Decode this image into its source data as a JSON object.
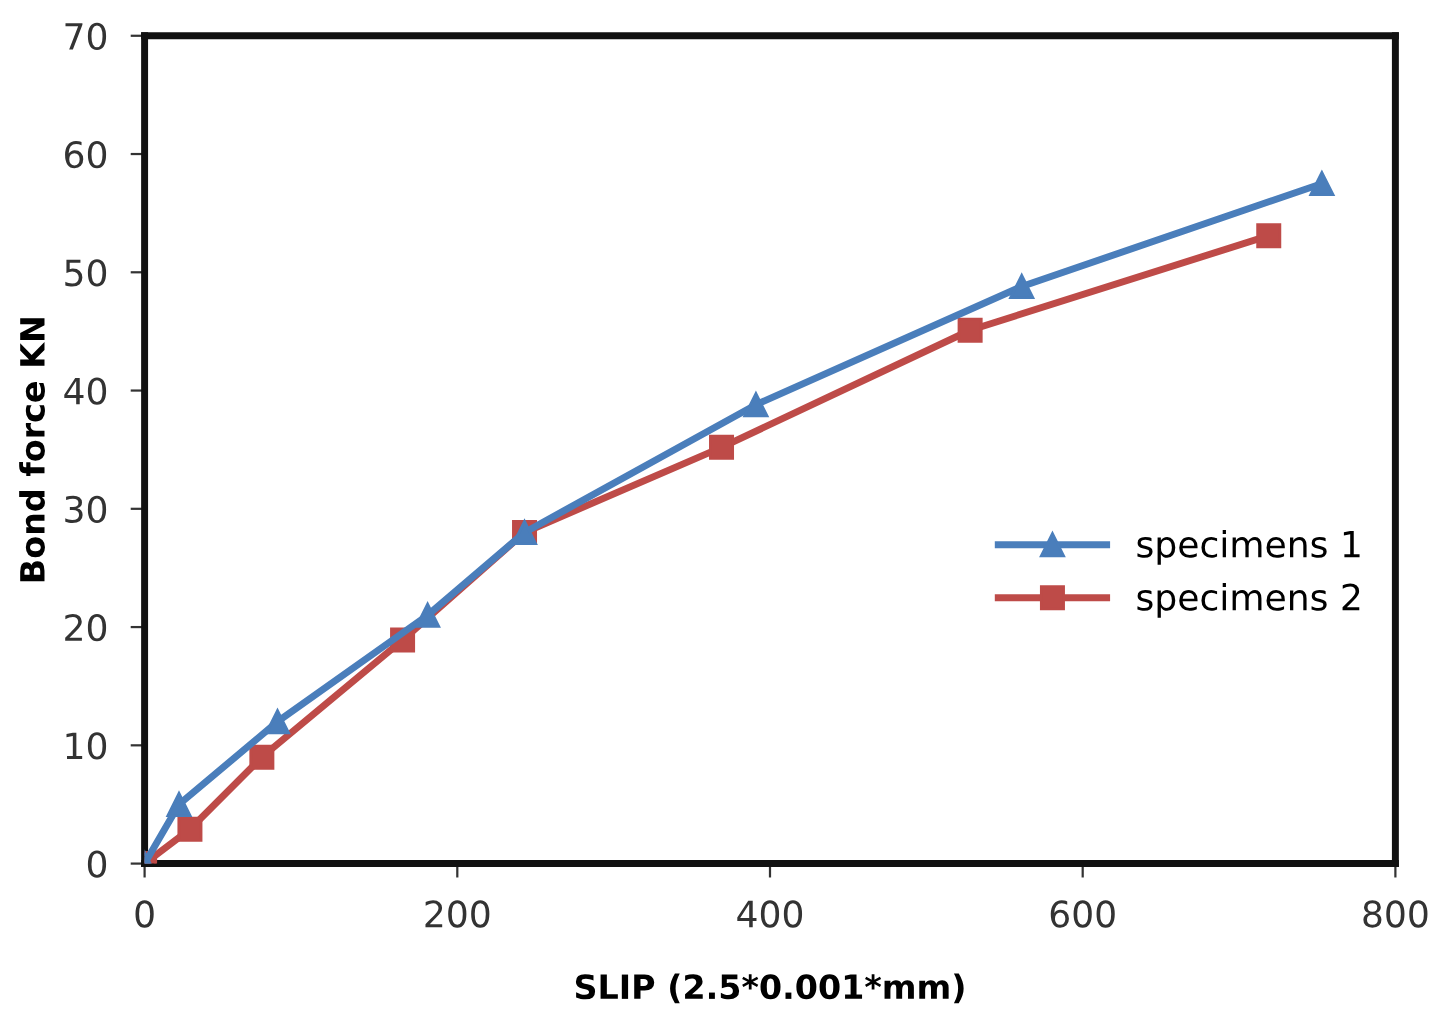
{
  "chart_data": {
    "type": "line",
    "xlabel": "SLIP (2.5*0.001*mm)",
    "ylabel": "Bond force KN",
    "xlim": [
      0,
      800
    ],
    "xticks": [
      0,
      200,
      400,
      600,
      800
    ],
    "ylim": [
      0,
      70
    ],
    "yticks": [
      0,
      10,
      20,
      30,
      40,
      50,
      60,
      70
    ],
    "grid": false,
    "legend": "right",
    "line_style": "solid",
    "series": [
      {
        "name": "specimens 1",
        "color": "#4a7ebb",
        "marker": "triangle",
        "x": [
          0,
          22,
          85,
          181,
          243,
          391,
          561,
          753
        ],
        "values": [
          0,
          5,
          12,
          21,
          28,
          38.8,
          48.8,
          57.5
        ]
      },
      {
        "name": "specimens 2",
        "color": "#be4b48",
        "marker": "square",
        "x": [
          0,
          29,
          75,
          165,
          243,
          369,
          528,
          719
        ],
        "values": [
          0,
          2.9,
          9,
          18.9,
          28,
          35.2,
          45.1,
          53.1
        ]
      }
    ]
  }
}
